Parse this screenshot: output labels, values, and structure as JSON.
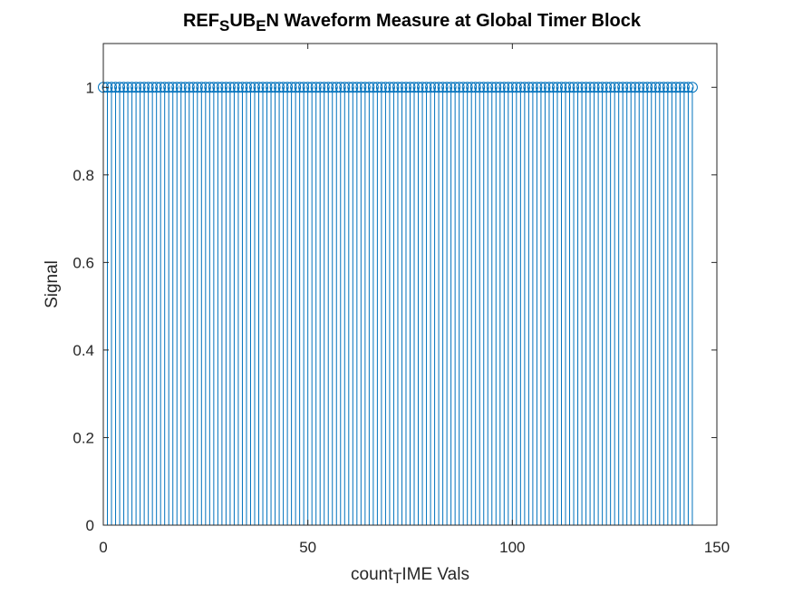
{
  "chart_data": {
    "type": "stem",
    "title": {
      "parts": [
        {
          "text": "REF",
          "sub": false
        },
        {
          "text": "S",
          "sub": true
        },
        {
          "text": "UB",
          "sub": false
        },
        {
          "text": "E",
          "sub": true
        },
        {
          "text": "N Waveform Measure at Global Timer Block",
          "sub": false
        }
      ]
    },
    "xlabel": {
      "parts": [
        {
          "text": "count",
          "sub": false
        },
        {
          "text": "T",
          "sub": true
        },
        {
          "text": "IME Vals",
          "sub": false
        }
      ]
    },
    "ylabel": "Signal",
    "xlim": [
      0,
      150
    ],
    "ylim": [
      0,
      1.1
    ],
    "xticks": [
      0,
      50,
      100,
      150
    ],
    "xtick_labels": [
      "0",
      "50",
      "100",
      "150"
    ],
    "yticks": [
      0,
      0.2,
      0.4,
      0.6,
      0.8,
      1
    ],
    "ytick_labels": [
      "0",
      "0.2",
      "0.4",
      "0.6",
      "0.8",
      "1"
    ],
    "grid": false,
    "series": [
      {
        "x_start": 0,
        "x_end": 144,
        "x_step": 1,
        "y": 1,
        "marker": "circle",
        "color": "#0072BD"
      }
    ]
  }
}
